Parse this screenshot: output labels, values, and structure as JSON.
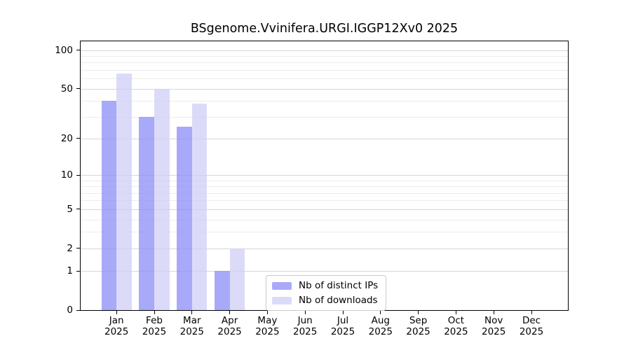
{
  "title": "BSgenome.Vvinifera.URGI.IGGP12Xv0 2025",
  "chart_data": {
    "type": "bar",
    "title": "BSgenome.Vvinifera.URGI.IGGP12Xv0 2025",
    "y_scale": "log1p",
    "grid": "horizontal",
    "categories": [
      "Jan",
      "Feb",
      "Mar",
      "Apr",
      "May",
      "Jun",
      "Jul",
      "Aug",
      "Sep",
      "Oct",
      "Nov",
      "Dec"
    ],
    "x_year_label": "2025",
    "series": [
      {
        "name": "Nb of distinct IPs",
        "color": "#a9a9fa",
        "color_rgba": "rgba(140,140,248,0.75)",
        "values": [
          40,
          30,
          25,
          1,
          0,
          0,
          0,
          0,
          0,
          0,
          0,
          0
        ]
      },
      {
        "name": "Nb of downloads",
        "color": "#dbdbf9",
        "color_rgba": "rgba(207,207,247,0.75)",
        "values": [
          66,
          50,
          38,
          2,
          0,
          0,
          0,
          0,
          0,
          0,
          0,
          0
        ]
      }
    ],
    "y_major_ticks": [
      0,
      1,
      2,
      5,
      10,
      20,
      50,
      100
    ],
    "y_minor_ticks": [
      3,
      4,
      6,
      7,
      8,
      9,
      30,
      40,
      60,
      70,
      80,
      90
    ],
    "ylim": [
      0,
      117
    ],
    "legend_position": "lower center"
  },
  "colors": {
    "background": "#ffffff",
    "axis": "#000000",
    "text": "#000000",
    "grid_major": "#d6d6d6",
    "grid_minor": "#ececec",
    "legend_border": "#c9c9c9"
  }
}
